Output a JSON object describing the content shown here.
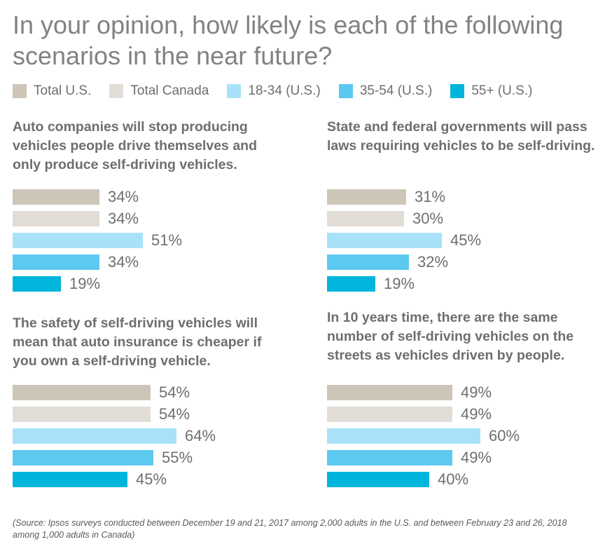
{
  "title": "In your opinion, how likely is each of the following scenarios in the near future?",
  "legend": [
    {
      "label": "Total U.S.",
      "color": "#cdc5b8"
    },
    {
      "label": "Total Canada",
      "color": "#e2ddd6"
    },
    {
      "label": "18-34 (U.S.)",
      "color": "#a9e2f8"
    },
    {
      "label": "35-54 (U.S.)",
      "color": "#5cc9f0"
    },
    {
      "label": "55+ (U.S.)",
      "color": "#00b5dc"
    }
  ],
  "chart_data": [
    {
      "type": "bar",
      "title": "Auto companies will stop producing vehicles people drive themselves and only produce self-driving vehicles.",
      "categories": [
        "Total U.S.",
        "Total Canada",
        "18-34 (U.S.)",
        "35-54 (U.S.)",
        "55+ (U.S.)"
      ],
      "values": [
        34,
        34,
        51,
        34,
        19
      ],
      "labels": [
        "34%",
        "34%",
        "51%",
        "34%",
        "19%"
      ],
      "xlim": [
        0,
        100
      ]
    },
    {
      "type": "bar",
      "title": "State and federal governments will pass laws requiring vehicles to be self-driving.",
      "categories": [
        "Total U.S.",
        "Total Canada",
        "18-34 (U.S.)",
        "35-54 (U.S.)",
        "55+ (U.S.)"
      ],
      "values": [
        31,
        30,
        45,
        32,
        19
      ],
      "labels": [
        "31%",
        "30%",
        "45%",
        "32%",
        "19%"
      ],
      "xlim": [
        0,
        100
      ]
    },
    {
      "type": "bar",
      "title": "The safety of self-driving vehicles will mean that auto insurance is cheaper if you own a self-driving vehicle.",
      "categories": [
        "Total U.S.",
        "Total Canada",
        "18-34 (U.S.)",
        "35-54 (U.S.)",
        "55+ (U.S.)"
      ],
      "values": [
        54,
        54,
        64,
        55,
        45
      ],
      "labels": [
        "54%",
        "54%",
        "64%",
        "55%",
        "45%"
      ],
      "xlim": [
        0,
        100
      ]
    },
    {
      "type": "bar",
      "title": "In 10 years time, there are the same number of self-driving vehicles on the streets as vehicles driven by people.",
      "categories": [
        "Total U.S.",
        "Total Canada",
        "18-34 (U.S.)",
        "35-54 (U.S.)",
        "55+ (U.S.)"
      ],
      "values": [
        49,
        49,
        60,
        49,
        40
      ],
      "labels": [
        "49%",
        "49%",
        "60%",
        "49%",
        "40%"
      ],
      "xlim": [
        0,
        100
      ]
    }
  ],
  "source": "(Source: Ipsos surveys conducted between December 19 and 21, 2017 among 2,000 adults in the U.S. and between February 23 and 26, 2018 among 1,000 adults in Canada)"
}
